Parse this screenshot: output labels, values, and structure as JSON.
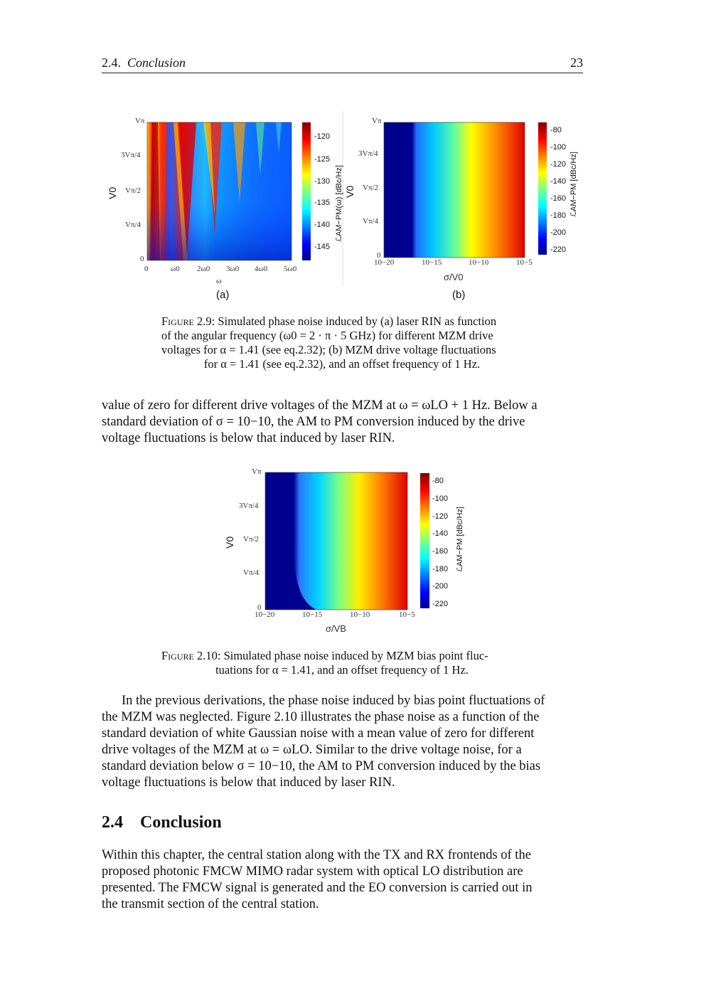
{
  "header": {
    "section_number": "2.4.",
    "section_title": "Conclusion",
    "page_number": "23"
  },
  "figure_2_9": {
    "panel_a": {
      "sublabel": "(a)",
      "y_label": "V0",
      "y_ticks": [
        "Vπ",
        "3Vπ/4",
        "Vπ/2",
        "Vπ/4",
        "0"
      ],
      "x_label": "ω",
      "x_ticks": [
        "0",
        "ω0",
        "2ω0",
        "3ω0",
        "4ω0",
        "5ω0"
      ],
      "colorbar_ticks": [
        "-120",
        "-125",
        "-130",
        "-135",
        "-140",
        "-145"
      ],
      "colorbar_label": "ℒAM−PM(ω) [dBc/Hz]"
    },
    "panel_b": {
      "sublabel": "(b)",
      "y_label": "V0",
      "y_ticks": [
        "Vπ",
        "3Vπ/4",
        "Vπ/2",
        "Vπ/4",
        "0"
      ],
      "x_label": "σ/V0",
      "x_ticks": [
        "10−20",
        "10−15",
        "10−10",
        "10−5"
      ],
      "colorbar_ticks": [
        "-80",
        "-100",
        "-120",
        "-140",
        "-160",
        "-180",
        "-200",
        "-220"
      ],
      "colorbar_label": "ℒAM−PM [dBc/Hz]"
    },
    "caption_label": "Figure 2.9:",
    "caption_lines": [
      "Simulated phase noise induced by (a) laser RIN as function",
      "of the angular frequency (ω0 = 2 · π · 5 GHz) for different MZM drive",
      "voltages for α = 1.41 (see eq.2.32); (b) MZM drive voltage fluctuations",
      "for α = 1.41 (see eq.2.32), and an offset frequency of 1 Hz."
    ]
  },
  "paragraph_1": [
    "value of zero for different drive voltages of the MZM at ω = ωLO + 1 Hz. Below a",
    "standard deviation of σ = 10−10, the AM to PM conversion induced by the drive",
    "voltage fluctuations is below that induced by laser RIN."
  ],
  "figure_2_10": {
    "y_label": "V0",
    "y_ticks": [
      "Vπ",
      "3Vπ/4",
      "Vπ/2",
      "Vπ/4",
      "0"
    ],
    "x_label": "σ/VB",
    "x_ticks": [
      "10−20",
      "10−15",
      "10−10",
      "10−5"
    ],
    "colorbar_ticks": [
      "-80",
      "-100",
      "-120",
      "-140",
      "-160",
      "-180",
      "-200",
      "-220"
    ],
    "colorbar_label": "ℒAM−PM [dBc/Hz]",
    "caption_label": "Figure 2.10:",
    "caption_lines": [
      "Simulated phase noise induced by MZM bias point fluc-",
      "tuations for α = 1.41, and an offset frequency of 1 Hz."
    ]
  },
  "paragraph_2": [
    "In the previous derivations, the phase noise induced by bias point fluctuations of",
    "the MZM was neglected. Figure 2.10 illustrates the phase noise as a function of the",
    "standard deviation of white Gaussian noise with a mean value of zero for different",
    "drive voltages of the MZM at ω = ωLO. Similar to the drive voltage noise, for a",
    "standard deviation below σ = 10−10, the AM to PM conversion induced by the bias",
    "voltage fluctuations is below that induced by laser RIN."
  ],
  "section": {
    "number": "2.4",
    "title": "Conclusion"
  },
  "paragraph_3": [
    "Within this chapter, the central station along with the TX and RX frontends of the",
    "proposed photonic FMCW MIMO radar system with optical LO distribution are",
    "presented. The FMCW signal is generated and the EO conversion is carried out in",
    "the transmit section of the central station."
  ]
}
